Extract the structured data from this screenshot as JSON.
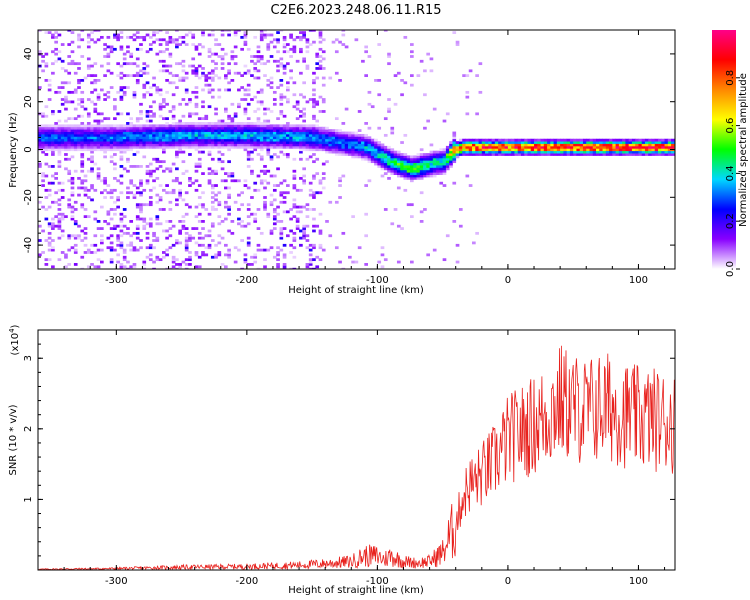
{
  "figure": {
    "title": "C2E6.2023.248.06.11.R15"
  },
  "chart_data": [
    {
      "type": "heatmap",
      "xlabel": "Height of straight line (km)",
      "ylabel": "Frequency (Hz)",
      "xlim": [
        -360,
        128
      ],
      "ylim": [
        -50,
        50
      ],
      "xticks": [
        -300,
        -200,
        -100,
        0,
        100
      ],
      "yticks": [
        -40,
        -20,
        0,
        20,
        40
      ],
      "colorbar": {
        "label": "Normalized spectral amplitude",
        "range": [
          0,
          1
        ],
        "ticks": [
          0.0,
          0.2,
          0.4,
          0.6,
          0.8
        ],
        "colormap": [
          "#ffffff",
          "#8800ff",
          "#0000ff",
          "#00d8ff",
          "#00ff00",
          "#ffff00",
          "#ff8800",
          "#ff0000",
          "#ff0088"
        ]
      },
      "ridge": {
        "x": [
          -360,
          -300,
          -250,
          -200,
          -150,
          -130,
          -110,
          -90,
          -75,
          -60,
          -50,
          -42,
          -35,
          -20,
          0,
          50,
          128
        ],
        "freq": [
          5,
          5,
          6,
          6,
          5,
          3,
          1,
          -5,
          -8,
          -6,
          -5,
          0,
          1,
          1,
          1,
          1,
          1
        ],
        "amplitude": [
          0.3,
          0.3,
          0.35,
          0.35,
          0.35,
          0.3,
          0.35,
          0.45,
          0.5,
          0.45,
          0.4,
          0.75,
          0.8,
          0.8,
          0.8,
          0.85,
          0.85
        ]
      },
      "grid": false
    },
    {
      "type": "line",
      "xlabel": "Height of straight line (km)",
      "ylabel": "SNR (10 * v/v)",
      "multiplier": "(x10",
      "multiplier_exp": "4",
      "multiplier_close": ")",
      "xlim": [
        -360,
        128
      ],
      "ylim": [
        0,
        3.4
      ],
      "xticks": [
        -300,
        -200,
        -100,
        0,
        100
      ],
      "yticks": [
        1,
        2,
        3
      ],
      "grid": false,
      "series": [
        {
          "color": "#e8211d",
          "x": [
            -360,
            -300,
            -250,
            -200,
            -160,
            -140,
            -120,
            -110,
            -100,
            -95,
            -90,
            -80,
            -70,
            -60,
            -50,
            -45,
            -40,
            -35,
            -30,
            -25,
            -20,
            -15,
            -10,
            -5,
            0,
            10,
            20,
            30,
            40,
            50,
            60,
            70,
            80,
            90,
            100,
            110,
            120,
            128
          ],
          "y": [
            0.01,
            0.02,
            0.04,
            0.05,
            0.07,
            0.09,
            0.12,
            0.2,
            0.2,
            0.15,
            0.2,
            0.12,
            0.1,
            0.12,
            0.25,
            0.45,
            0.65,
            1.0,
            1.2,
            1.25,
            1.35,
            1.45,
            1.55,
            1.7,
            1.85,
            1.95,
            2.05,
            2.2,
            2.4,
            2.3,
            2.25,
            2.3,
            2.3,
            2.2,
            2.15,
            2.15,
            2.1,
            2.1
          ]
        }
      ]
    }
  ]
}
